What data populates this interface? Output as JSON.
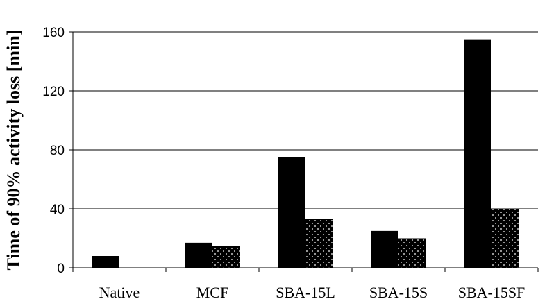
{
  "chart_data": {
    "type": "bar",
    "categories": [
      "Native",
      "MCF",
      "SBA-15L",
      "SBA-15S",
      "SBA-15SF"
    ],
    "series": [
      {
        "values": [
          8,
          17,
          75,
          25,
          155
        ],
        "fill": "solid",
        "color": "#000000"
      },
      {
        "values": [
          null,
          15,
          33,
          20,
          40
        ],
        "fill": "dotted",
        "color": "#000000"
      }
    ],
    "ylabel": "Time of 90% activity loss [min]",
    "xlabel": "",
    "ylim": [
      0,
      160
    ],
    "yticks": [
      "0",
      "40",
      "80",
      "120",
      "160"
    ],
    "grid": "horizontal",
    "legend": "none"
  }
}
